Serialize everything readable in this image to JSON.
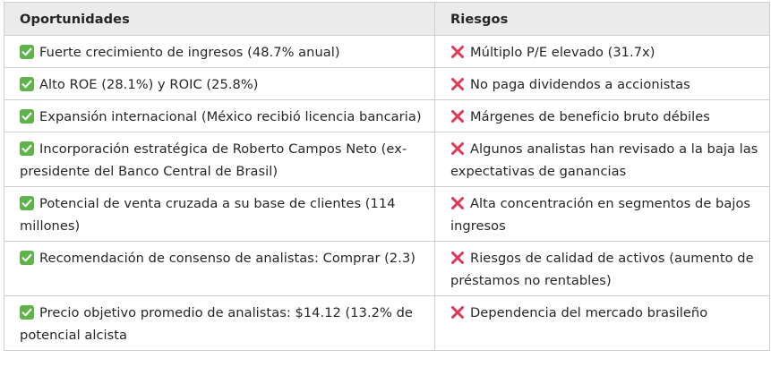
{
  "header": {
    "opportunities_label": "Oportunidades",
    "risks_label": "Riesgos"
  },
  "icons": {
    "opportunity": "check-mark-button-icon",
    "risk": "cross-mark-icon",
    "check_color": "#5fb34a",
    "cross_color": "#e0385a"
  },
  "rows": [
    {
      "opportunity": "Fuerte crecimiento de ingresos (48.7% anual)",
      "risk": "Múltiplo P/E elevado (31.7x)"
    },
    {
      "opportunity": "Alto ROE (28.1%) y ROIC (25.8%)",
      "risk": "No paga dividendos a accionistas"
    },
    {
      "opportunity": "Expansión internacional (México recibió licencia bancaria)",
      "risk": "Márgenes de beneficio bruto débiles"
    },
    {
      "opportunity": "Incorporación estratégica de Roberto Campos Neto (ex-presidente del Banco Central de Brasil)",
      "risk": "Algunos analistas han revisado a la baja las expectativas de ganancias"
    },
    {
      "opportunity": "Potencial de venta cruzada a su base de clientes (114 millones)",
      "risk": "Alta concentración en segmentos de bajos ingresos"
    },
    {
      "opportunity": "Recomendación de consenso de analistas: Comprar (2.3)",
      "risk": "Riesgos de calidad de activos (aumento de préstamos no rentables)"
    },
    {
      "opportunity": "Precio objetivo promedio de analistas: $14.12 (13.2% de potencial alcista",
      "risk": "Dependencia del mercado brasileño"
    }
  ]
}
